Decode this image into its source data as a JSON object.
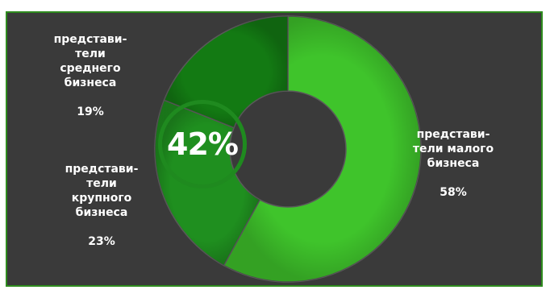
{
  "chart_data": {
    "type": "pie",
    "style": "donut",
    "categories": [
      "представи-\nтели малого\nбизнеса",
      "представи-\nтели\nкрупного\nбизнеса",
      "представи-\nтели\nсреднего\nбизнеса"
    ],
    "values": [
      58,
      23,
      19
    ],
    "value_labels": [
      "58%",
      "23%",
      "19%"
    ],
    "colors": [
      "#3fc42b",
      "#1f8f1f",
      "#137a13"
    ],
    "legend": "none"
  },
  "callout": {
    "text": "42%"
  },
  "colors": {
    "background": "#3a3a3a",
    "border": "#2e8b1e",
    "ring": "#1f8a1f"
  }
}
